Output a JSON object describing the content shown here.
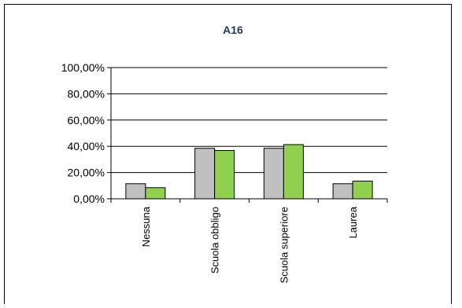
{
  "chart_data": {
    "type": "bar",
    "title": "A16",
    "categories": [
      "Nessuna",
      "Scuola obbligo",
      "Scuola superiore",
      "Laurea"
    ],
    "series": [
      {
        "values": [
          11.5,
          38.5,
          38.5,
          11.5
        ],
        "color": "#c0c0c0"
      },
      {
        "values": [
          8.5,
          36.8,
          41.3,
          13.5
        ],
        "color": "#8fd14f"
      }
    ],
    "ylim": [
      0,
      100
    ],
    "yticks": [
      "0,00%",
      "20,00%",
      "40,00%",
      "60,00%",
      "80,00%",
      "100,00%"
    ],
    "grid": true,
    "legend": "none"
  }
}
